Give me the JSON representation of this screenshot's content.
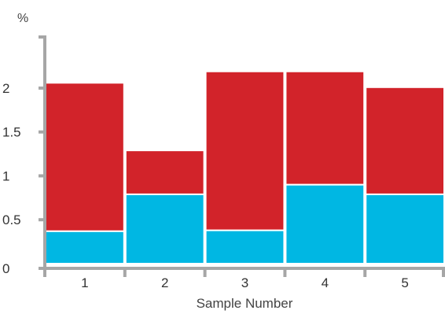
{
  "chart_data": {
    "type": "bar",
    "stacked": true,
    "unit_label": "%",
    "xlabel": "Sample Number",
    "categories": [
      "1",
      "2",
      "3",
      "4",
      "5"
    ],
    "series": [
      {
        "values": [
          0.37,
          0.79,
          0.38,
          0.9,
          0.79
        ],
        "color": "#00b7e3"
      },
      {
        "values": [
          1.69,
          0.5,
          1.81,
          1.29,
          1.22
        ],
        "color": "#d2232a"
      }
    ],
    "yticks": [
      "0",
      "0.5",
      "1",
      "1.5",
      "2"
    ],
    "ylim": [
      0,
      2.6
    ],
    "grid": false,
    "axis_color": "#a6a6a6"
  }
}
